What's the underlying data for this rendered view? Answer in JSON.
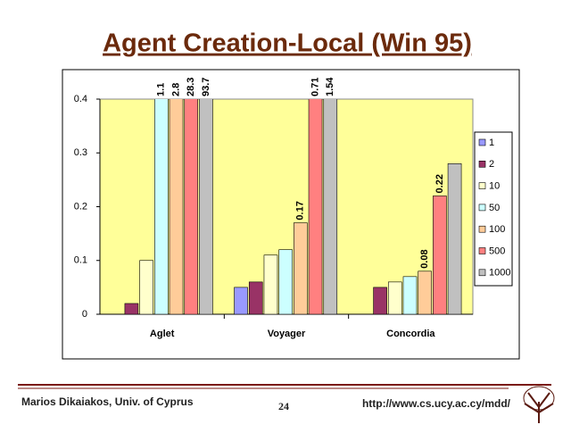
{
  "chart_data": {
    "type": "bar",
    "title": "Agent Creation-Local (Win 95)",
    "categories": [
      "Aglet",
      "Voyager",
      "Concordia"
    ],
    "series": [
      {
        "name": "1",
        "color": "#9999ff",
        "values": [
          0,
          0.05,
          null
        ],
        "value_labels": [
          null,
          null,
          null
        ]
      },
      {
        "name": "2",
        "color": "#993366",
        "values": [
          0.02,
          0.06,
          0.05
        ],
        "value_labels": [
          null,
          null,
          null
        ]
      },
      {
        "name": "10",
        "color": "#ffffcc",
        "values": [
          0.1,
          0.11,
          0.06
        ],
        "value_labels": [
          null,
          null,
          null
        ]
      },
      {
        "name": "50",
        "color": "#ccffff",
        "values": [
          1.1,
          0.12,
          0.07
        ],
        "value_labels": [
          "1.1",
          null,
          null
        ]
      },
      {
        "name": "100",
        "color": "#ffcc99",
        "values": [
          2.8,
          0.17,
          0.08
        ],
        "value_labels": [
          "2.8",
          "0.17",
          "0.08"
        ]
      },
      {
        "name": "500",
        "color": "#ff8080",
        "values": [
          28.3,
          0.71,
          0.22
        ],
        "value_labels": [
          "28.3",
          "0.71",
          "0.22"
        ]
      },
      {
        "name": "1000",
        "color": "#c0c0c0",
        "values": [
          93.7,
          1.54,
          0.28
        ],
        "value_labels": [
          "93.7",
          "1.54",
          null
        ]
      }
    ],
    "ylim": [
      0,
      0.4
    ],
    "yticks": [
      0,
      0.1,
      0.2,
      0.3,
      0.4
    ],
    "grid": false,
    "plot_background": "#ffff99"
  },
  "footer": {
    "author": "Marios Dikaiakos, Univ. of Cyprus",
    "page": "24",
    "url": "http://www.cs.ucy.ac.cy/mdd/"
  }
}
